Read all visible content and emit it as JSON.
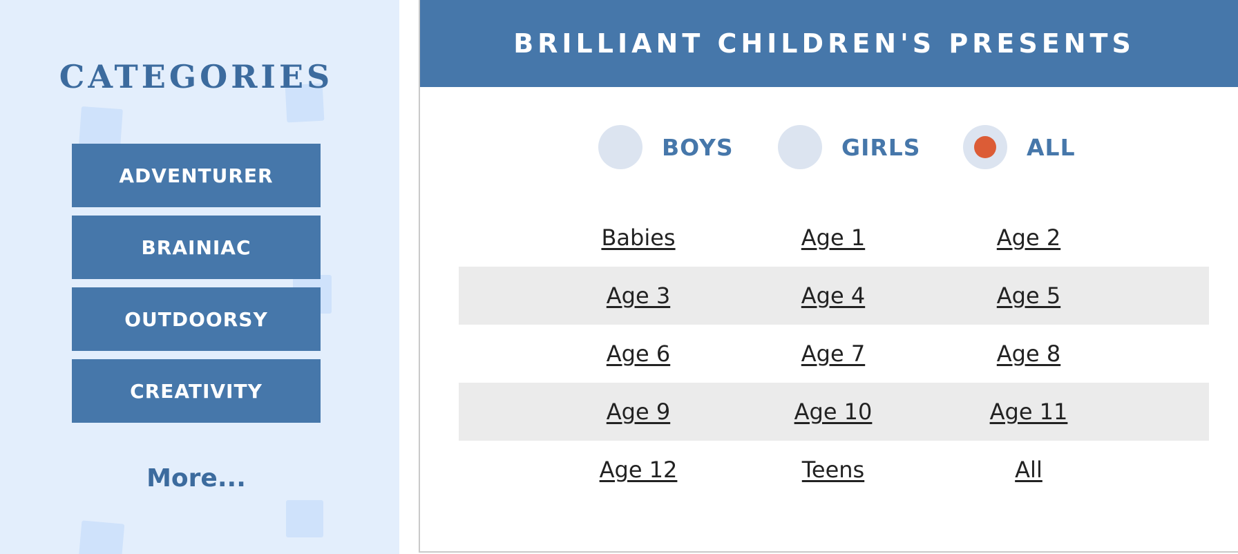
{
  "sidebar": {
    "title": "CATEGORIES",
    "items": [
      {
        "label": "ADVENTURER"
      },
      {
        "label": "BRAINIAC"
      },
      {
        "label": "OUTDOORSY"
      },
      {
        "label": "CREATIVITY"
      }
    ],
    "more_label": "More..."
  },
  "main": {
    "title": "BRILLIANT CHILDREN'S PRESENTS",
    "gender_options": [
      {
        "label": "BOYS",
        "selected": false
      },
      {
        "label": "GIRLS",
        "selected": false
      },
      {
        "label": "ALL",
        "selected": true
      }
    ],
    "age_rows": [
      [
        "Babies",
        "Age 1",
        "Age 2"
      ],
      [
        "Age 3",
        "Age 4",
        "Age 5"
      ],
      [
        "Age 6",
        "Age 7",
        "Age 8"
      ],
      [
        "Age 9",
        "Age 10",
        "Age 11"
      ],
      [
        "Age 12",
        "Teens",
        "All"
      ]
    ]
  },
  "colors": {
    "brand_blue": "#4677aa",
    "sidebar_bg": "#e3eefc",
    "radio_selected": "#dc5c36",
    "radio_unselected": "#dce4f0",
    "row_shade": "#ebebeb"
  }
}
